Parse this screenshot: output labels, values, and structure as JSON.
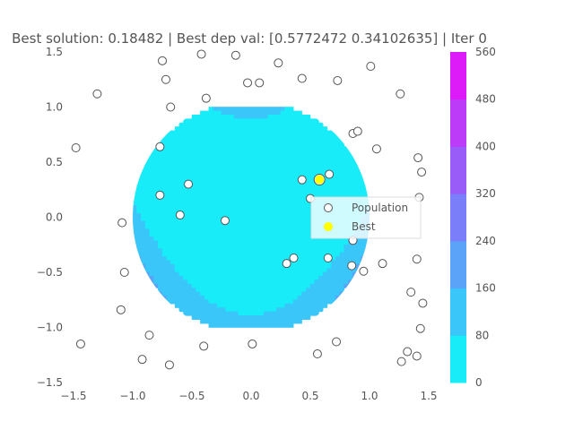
{
  "chart_data": {
    "type": "scatter",
    "title": "Best solution: 0.18482 | Best dep val: [0.5772472  0.34102635] | Iter 0",
    "xlim": [
      -1.5,
      1.5
    ],
    "ylim": [
      -1.5,
      1.5
    ],
    "xticks": [
      -1.5,
      -1.0,
      -0.5,
      0.0,
      0.5,
      1.0,
      1.5
    ],
    "yticks": [
      -1.5,
      -1.0,
      -0.5,
      0.0,
      0.5,
      1.0,
      1.5
    ],
    "xtick_labels": [
      "−1.5",
      "−1.0",
      "−0.5",
      "0.0",
      "0.5",
      "1.0",
      "1.5"
    ],
    "ytick_labels": [
      "−1.5",
      "−1.0",
      "−0.5",
      "0.0",
      "0.5",
      "1.0",
      "1.5"
    ],
    "grid": false,
    "contour": {
      "domain": "unit-disk",
      "levels": [
        0,
        80,
        160,
        240,
        320,
        400,
        480,
        560
      ],
      "level_labels": [
        "0",
        "80",
        "160",
        "240",
        "320",
        "400",
        "480",
        "560"
      ],
      "colors": [
        "#18ecf8",
        "#3ac6f8",
        "#5aa3f8",
        "#7a7ef8",
        "#9a5cf8",
        "#bb3bf8",
        "#dd1bf8"
      ],
      "colormap": "cool"
    },
    "colorbar": {
      "placement": "right"
    },
    "legend": {
      "placement": "center-right",
      "entries": [
        "Population",
        "Best"
      ]
    },
    "series": [
      {
        "name": "Population",
        "marker": "open-circle",
        "points": [
          [
            -0.75,
            1.42
          ],
          [
            -0.42,
            1.48
          ],
          [
            -0.13,
            1.47
          ],
          [
            0.23,
            1.4
          ],
          [
            1.01,
            1.37
          ],
          [
            -0.72,
            1.25
          ],
          [
            -0.03,
            1.22
          ],
          [
            0.07,
            1.22
          ],
          [
            0.43,
            1.26
          ],
          [
            0.73,
            1.24
          ],
          [
            -1.3,
            1.12
          ],
          [
            -0.38,
            1.08
          ],
          [
            1.26,
            1.12
          ],
          [
            -0.68,
            1.0
          ],
          [
            0.86,
            0.76
          ],
          [
            0.9,
            0.78
          ],
          [
            -0.77,
            0.64
          ],
          [
            -1.48,
            0.63
          ],
          [
            1.06,
            0.62
          ],
          [
            1.41,
            0.54
          ],
          [
            1.44,
            0.41
          ],
          [
            0.66,
            0.39
          ],
          [
            0.43,
            0.34
          ],
          [
            -0.53,
            0.3
          ],
          [
            0.5,
            0.17
          ],
          [
            -0.77,
            0.2
          ],
          [
            1.42,
            0.18
          ],
          [
            -0.6,
            0.02
          ],
          [
            -0.22,
            -0.03
          ],
          [
            -1.09,
            -0.05
          ],
          [
            0.86,
            -0.21
          ],
          [
            1.4,
            -0.38
          ],
          [
            0.36,
            -0.37
          ],
          [
            0.3,
            -0.42
          ],
          [
            0.65,
            -0.37
          ],
          [
            0.85,
            -0.44
          ],
          [
            0.95,
            -0.49
          ],
          [
            1.11,
            -0.42
          ],
          [
            -1.07,
            -0.5
          ],
          [
            1.35,
            -0.68
          ],
          [
            1.45,
            -0.78
          ],
          [
            -1.1,
            -0.84
          ],
          [
            1.43,
            -1.01
          ],
          [
            -0.86,
            -1.07
          ],
          [
            0.72,
            -1.13
          ],
          [
            -1.44,
            -1.15
          ],
          [
            -0.4,
            -1.17
          ],
          [
            0.01,
            -1.15
          ],
          [
            1.32,
            -1.22
          ],
          [
            0.56,
            -1.24
          ],
          [
            -0.92,
            -1.29
          ],
          [
            1.4,
            -1.26
          ],
          [
            1.27,
            -1.31
          ],
          [
            -0.69,
            -1.34
          ]
        ]
      },
      {
        "name": "Best",
        "marker": "filled-circle",
        "color": "#ffff00",
        "points": [
          [
            0.5772472,
            0.34102635
          ]
        ]
      }
    ]
  }
}
